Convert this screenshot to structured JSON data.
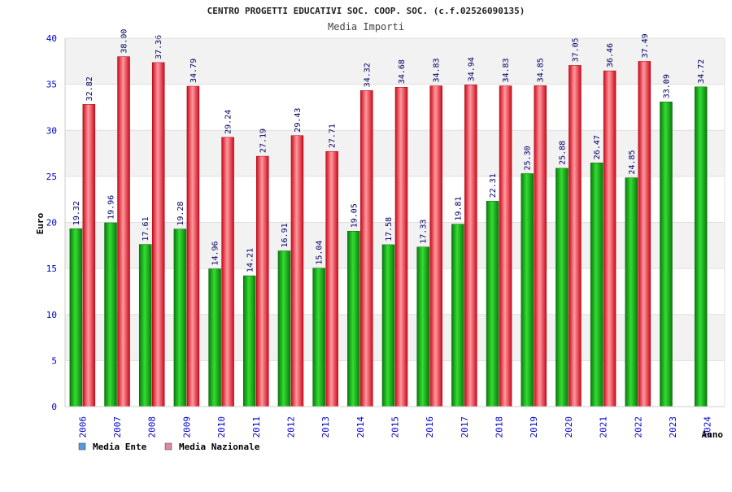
{
  "chart_data": {
    "type": "bar",
    "title": "CENTRO PROGETTI EDUCATIVI SOC. COOP. SOC. (c.f.02526090135)",
    "subtitle": "Media Importi",
    "xlabel": "Anno",
    "ylabel": "Euro",
    "ylim": [
      0,
      40
    ],
    "yticks": [
      0,
      5,
      10,
      15,
      20,
      25,
      30,
      35,
      40
    ],
    "grid": true,
    "legend_position": "bottom-left",
    "categories": [
      "2006",
      "2007",
      "2008",
      "2009",
      "2010",
      "2011",
      "2012",
      "2013",
      "2014",
      "2015",
      "2016",
      "2017",
      "2018",
      "2019",
      "2020",
      "2021",
      "2022",
      "2023",
      "2024"
    ],
    "series": [
      {
        "name": "Media Ente",
        "color": "#22bb22",
        "legend_color": "#5599dd",
        "values": [
          19.32,
          19.96,
          17.61,
          19.28,
          14.96,
          14.21,
          16.91,
          15.04,
          19.05,
          17.58,
          17.33,
          19.81,
          22.31,
          25.3,
          25.88,
          26.47,
          24.85,
          33.09,
          34.72
        ],
        "labels": [
          "19.32",
          "19.96",
          "17.61",
          "19.28",
          "14.96",
          "14.21",
          "16.91",
          "15.04",
          "19.05",
          "17.58",
          "17.33",
          "19.81",
          "22.31",
          "25.30",
          "25.88",
          "26.47",
          "24.85",
          "33.09",
          "34.72"
        ]
      },
      {
        "name": "Media Nazionale",
        "color": "#ee3344",
        "legend_color": "#dd88aa",
        "values": [
          32.82,
          38.0,
          37.36,
          34.79,
          29.24,
          27.19,
          29.43,
          27.71,
          34.32,
          34.68,
          34.83,
          34.94,
          34.83,
          34.85,
          37.05,
          36.46,
          37.49,
          null,
          null
        ],
        "labels": [
          "32.82",
          "38.00",
          "37.36",
          "34.79",
          "29.24",
          "27.19",
          "29.43",
          "27.71",
          "34.32",
          "34.68",
          "34.83",
          "34.94",
          "34.83",
          "34.85",
          "37.05",
          "36.46",
          "37.49",
          null,
          null
        ]
      }
    ]
  }
}
